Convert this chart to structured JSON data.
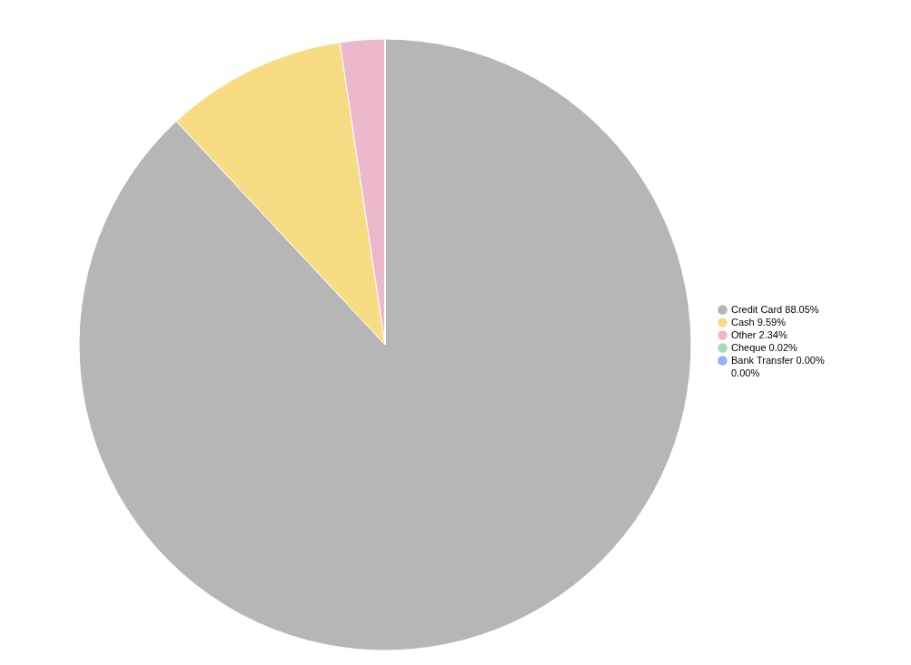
{
  "chart_data": {
    "type": "pie",
    "categories": [
      "Credit Card",
      "Cash",
      "Other",
      "Cheque",
      "Bank Transfer",
      null
    ],
    "values": [
      88.05,
      9.59,
      2.34,
      0.02,
      0.0,
      0.0
    ],
    "value_labels": [
      "88.05%",
      "9.59%",
      "2.34%",
      "0.02%",
      "0.00%",
      "0.00%"
    ],
    "colors": [
      "#b6b6b6",
      "#f7dc83",
      "#ecb8cb",
      "#a3dcb8",
      "#93b4ee",
      "#586a89"
    ],
    "legend": "right"
  }
}
